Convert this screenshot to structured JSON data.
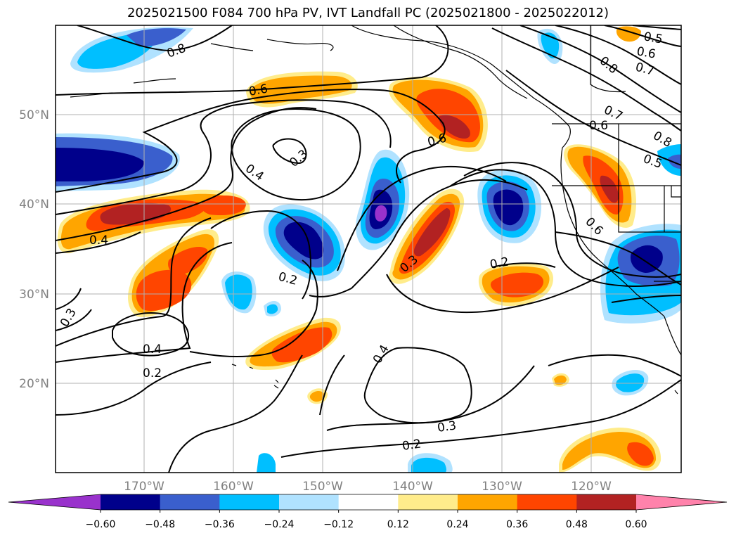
{
  "title": "2025021500 F084 700 hPa PV, IVT Landfall PC (2025021800 - 2025022012)",
  "map": {
    "lon_labels": [
      "170°W",
      "160°W",
      "150°W",
      "140°W",
      "130°W",
      "120°W"
    ],
    "lat_labels": [
      "50°N",
      "40°N",
      "30°N",
      "20°N"
    ],
    "contour_labels": [
      "0.8",
      "0.6",
      "0.4",
      "0.3",
      "0.6",
      "0.4",
      "0.2",
      "0.3",
      "0.4",
      "0.2",
      "0.3",
      "0.2",
      "0.4",
      "0.3",
      "0.2",
      "0.5",
      "0.6",
      "0.7",
      "0.8",
      "0.7",
      "0.6",
      "0.8",
      "0.5",
      "0.6"
    ]
  },
  "colorbar": {
    "ticks": [
      "−0.60",
      "−0.48",
      "−0.36",
      "−0.24",
      "−0.12",
      "0.12",
      "0.24",
      "0.36",
      "0.48",
      "0.60"
    ],
    "colors": [
      "#9932cc",
      "#00008b",
      "#3a5fcd",
      "#00bfff",
      "#b0e2ff",
      "#ffffff",
      "#ffec8b",
      "#ffa500",
      "#ff4500",
      "#b22222",
      "#ff82ab"
    ]
  }
}
